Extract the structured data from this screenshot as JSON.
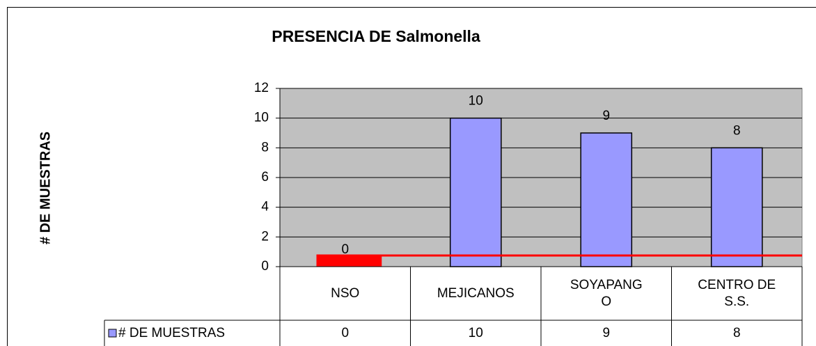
{
  "chart_data": {
    "type": "bar",
    "title": "PRESENCIA DE Salmonella",
    "y_label": "# DE MUESTRAS",
    "categories": [
      "NSO",
      "MEJICANOS",
      "SOYAPANG\nO",
      "CENTRO DE\nS.S."
    ],
    "series": [
      {
        "name": "# DE MUESTRAS",
        "color": "#9999ff",
        "values": [
          0,
          10,
          9,
          8
        ]
      }
    ],
    "ylim": [
      0,
      12
    ],
    "yticks": [
      0,
      2,
      4,
      6,
      8,
      10,
      12
    ],
    "grid": true,
    "reference_line": {
      "value": 0.75,
      "color": "#ff0000"
    },
    "data_table": true
  }
}
